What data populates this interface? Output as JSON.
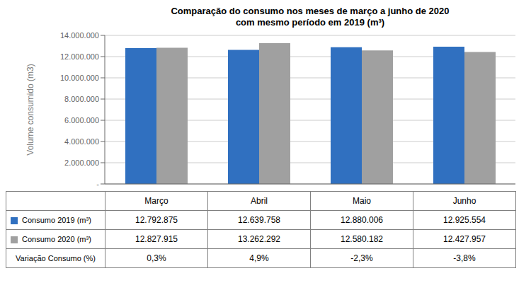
{
  "chart_data": {
    "type": "bar",
    "title": "Comparação do consumo nos meses de março a junho de 2020",
    "subtitle": "com mesmo período em 2019  (m³)",
    "y_label": "Volume consumido (m3)",
    "categories": [
      "Março",
      "Abril",
      "Maio",
      "Junho"
    ],
    "series": [
      {
        "name": "Consumo 2019 (m³)",
        "color": "#3070C0",
        "values": [
          12792875,
          12639758,
          12880006,
          12925554
        ],
        "value_labels": [
          "12.792.875",
          "12.639.758",
          "12.880.006",
          "12.925.554"
        ]
      },
      {
        "name": "Consumo 2020 (m³)",
        "color": "#A0A0A0",
        "values": [
          12827915,
          13262292,
          12580182,
          12427957
        ],
        "value_labels": [
          "12.827.915",
          "13.262.292",
          "12.580.182",
          "12.427.957"
        ]
      }
    ],
    "variation": {
      "label": "Variação Consumo (%)",
      "values": [
        0.3,
        4.9,
        -2.3,
        -3.8
      ],
      "value_labels": [
        "0,3%",
        "4,9%",
        "-2,3%",
        "-3,8%"
      ]
    },
    "ylim": [
      0,
      14000000
    ],
    "yticks": [
      {
        "value": 0,
        "label": "-"
      },
      {
        "value": 2000000,
        "label": "2.000.000"
      },
      {
        "value": 4000000,
        "label": "4.000.000"
      },
      {
        "value": 6000000,
        "label": "6.000.000"
      },
      {
        "value": 8000000,
        "label": "8.000.000"
      },
      {
        "value": 10000000,
        "label": "10.000.000"
      },
      {
        "value": 12000000,
        "label": "12.000.000"
      },
      {
        "value": 14000000,
        "label": "14.000.000"
      }
    ],
    "grid": true
  }
}
